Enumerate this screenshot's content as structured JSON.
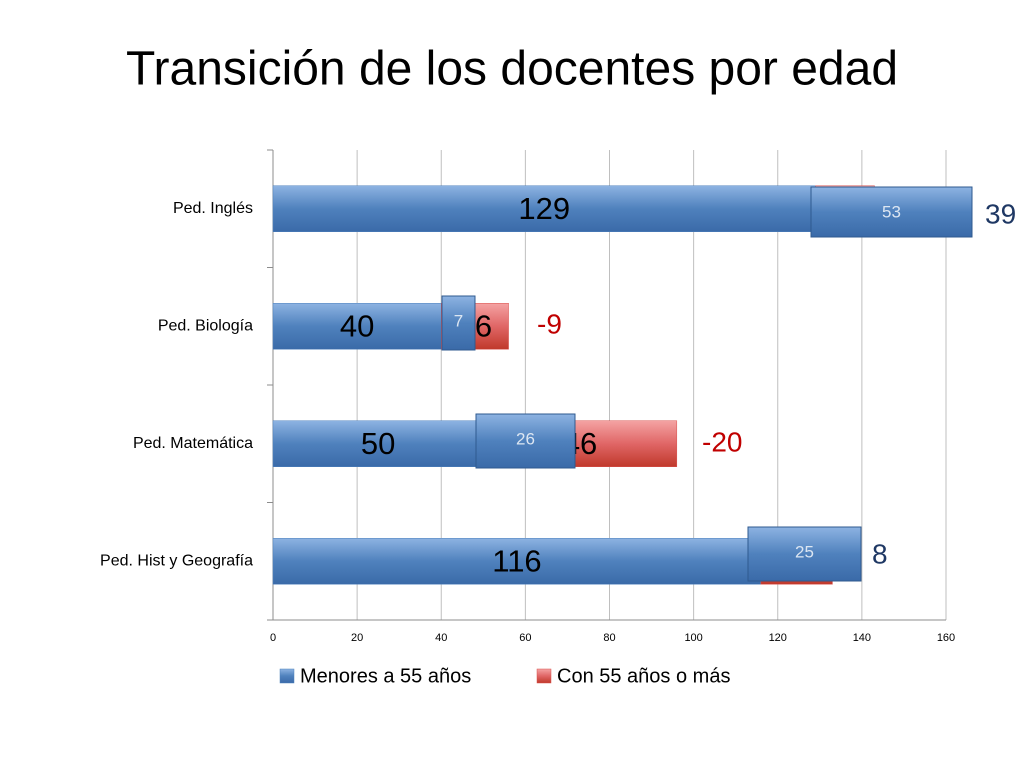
{
  "chart_data": {
    "type": "stacked-barh",
    "title": "Transición de los docentes por edad",
    "categories": [
      "Ped. Inglés",
      "Ped. Biología",
      "Ped. Matemática",
      "Ped. Hist y Geografía"
    ],
    "series": [
      {
        "name": "Menores a 55 años",
        "color": "#4f81bd",
        "values": [
          129,
          40,
          50,
          116
        ]
      },
      {
        "name": "Con 55 años o más",
        "color": "#d9534f",
        "values": [
          14,
          16,
          46,
          17
        ]
      }
    ],
    "overlay_labels": [
      53,
      7,
      26,
      25
    ],
    "difference_labels": [
      39,
      -9,
      -20,
      8
    ],
    "xlim": [
      0,
      160
    ],
    "xticks": [
      0,
      20,
      40,
      60,
      80,
      100,
      120,
      140,
      160
    ],
    "grid": true,
    "legend": "bottom"
  }
}
